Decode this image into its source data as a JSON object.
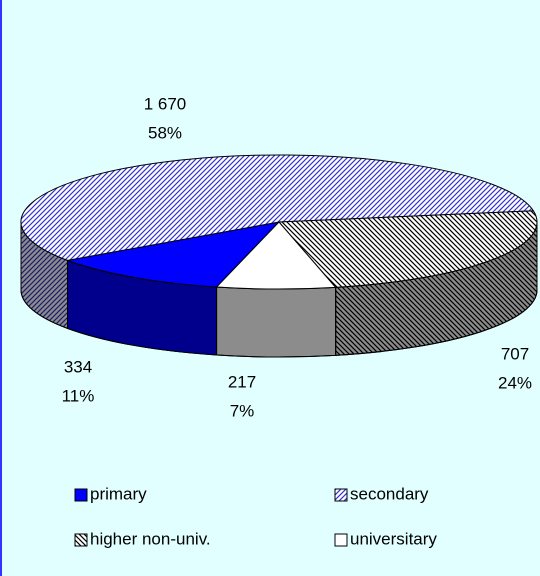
{
  "chart_data": {
    "type": "pie3d",
    "categories": [
      "primary",
      "secondary",
      "higher non-univ.",
      "universitary"
    ],
    "values": [
      334,
      1670,
      707,
      217
    ],
    "value_labels": [
      "334",
      "1 670",
      "707",
      "217"
    ],
    "percent_labels": [
      "11%",
      "58%",
      "24%",
      "7%"
    ],
    "colors": [
      "#0000ff",
      "#3333cc",
      "#000000",
      "#ffffff"
    ],
    "patterns": [
      "solid",
      "hatch-right",
      "hatch-left",
      "solid"
    ],
    "legend": "bottom"
  }
}
